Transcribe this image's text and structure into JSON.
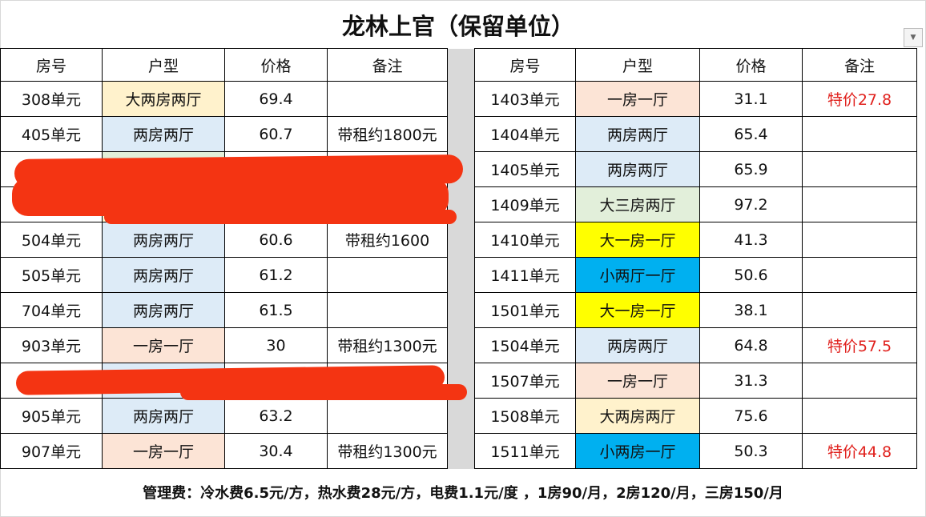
{
  "title": "龙林上官（保留单位）",
  "headers": [
    "房号",
    "户型",
    "价格",
    "备注"
  ],
  "colors": {
    "大两房两厅": "#fff2cc",
    "两房两厅": "#ddebf7",
    "一房一厅": "#fce4d6",
    "大三房两厅": "#e2efda",
    "大一房一厅": "#ffff00",
    "小两厅一厅": "#00b0f0",
    "小两房一厅": "#00b0f0",
    "redacted_a": "#e2efda",
    "redacted_b": "#fff2cc",
    "redacted_c": "#ddebf7",
    "remark_red": "#e0201c",
    "scribble": "#f43412"
  },
  "left": [
    {
      "room": "308单元",
      "type": "大两房两厅",
      "price": "69.4",
      "note": ""
    },
    {
      "room": "405单元",
      "type": "两房两厅",
      "price": "60.7",
      "note": "带租约1800元"
    },
    {
      "room": "",
      "type": "",
      "price": "",
      "note": "",
      "redacted": true
    },
    {
      "room": "",
      "type": "",
      "price": "",
      "note": "",
      "redacted": true
    },
    {
      "room": "504单元",
      "type": "两房两厅",
      "price": "60.6",
      "note": "带租约1600"
    },
    {
      "room": "505单元",
      "type": "两房两厅",
      "price": "61.2",
      "note": ""
    },
    {
      "room": "704单元",
      "type": "两房两厅",
      "price": "61.5",
      "note": ""
    },
    {
      "room": "903单元",
      "type": "一房一厅",
      "price": "30",
      "note": "带租约1300元"
    },
    {
      "room": "",
      "type": "",
      "price": "",
      "note": "",
      "redacted": true
    },
    {
      "room": "905单元",
      "type": "两房两厅",
      "price": "63.2",
      "note": ""
    },
    {
      "room": "907单元",
      "type": "一房一厅",
      "price": "30.4",
      "note": "带租约1300元"
    }
  ],
  "right": [
    {
      "room": "1403单元",
      "type": "一房一厅",
      "price": "31.1",
      "note": "特价27.8"
    },
    {
      "room": "1404单元",
      "type": "两房两厅",
      "price": "65.4",
      "note": ""
    },
    {
      "room": "1405单元",
      "type": "两房两厅",
      "price": "65.9",
      "note": ""
    },
    {
      "room": "1409单元",
      "type": "大三房两厅",
      "price": "97.2",
      "note": ""
    },
    {
      "room": "1410单元",
      "type": "大一房一厅",
      "price": "41.3",
      "note": ""
    },
    {
      "room": "1411单元",
      "type": "小两厅一厅",
      "price": "50.6",
      "note": ""
    },
    {
      "room": "1501单元",
      "type": "大一房一厅",
      "price": "38.1",
      "note": ""
    },
    {
      "room": "1504单元",
      "type": "两房两厅",
      "price": "64.8",
      "note": "特价57.5"
    },
    {
      "room": "1507单元",
      "type": "一房一厅",
      "price": "31.3",
      "note": ""
    },
    {
      "room": "1508单元",
      "type": "大两房两厅",
      "price": "75.6",
      "note": ""
    },
    {
      "room": "1511单元",
      "type": "小两房一厅",
      "price": "50.3",
      "note": "特价44.8"
    }
  ],
  "footer": "管理费：冷水费6.5元/方，热水费28元/方，电费1.1元/度 ，1房90/月，2房120/月，三房150/月"
}
